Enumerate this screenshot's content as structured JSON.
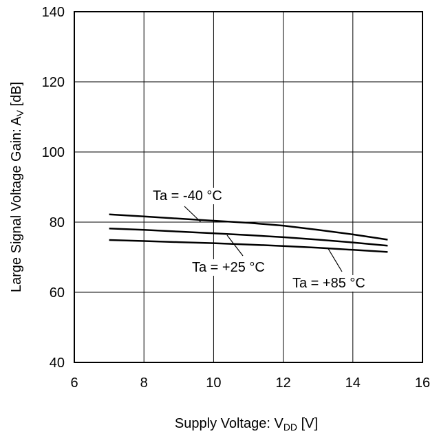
{
  "chart_data": {
    "type": "line",
    "title": "",
    "xlabel": {
      "prefix": "Supply Voltage: V",
      "sub": "DD",
      "suffix": " [V]"
    },
    "ylabel": {
      "prefix": "Large Signal Voltage Gain: A",
      "sub": "V",
      "suffix": " [dB]"
    },
    "xlim": [
      6,
      16
    ],
    "ylim": [
      40,
      140
    ],
    "xticks": [
      6,
      8,
      10,
      12,
      14,
      16
    ],
    "yticks": [
      40,
      60,
      80,
      100,
      120,
      140
    ],
    "grid": true,
    "legend": "none",
    "series": [
      {
        "name": "Ta = -40 °C",
        "x": [
          7,
          8,
          9,
          10,
          11,
          12,
          13,
          14,
          15
        ],
        "y": [
          82.2,
          81.6,
          81.0,
          80.4,
          79.8,
          79.0,
          77.8,
          76.5,
          75.0
        ]
      },
      {
        "name": "Ta = +25 °C",
        "x": [
          7,
          8,
          9,
          10,
          11,
          12,
          13,
          14,
          15
        ],
        "y": [
          78.2,
          77.8,
          77.3,
          76.8,
          76.3,
          75.7,
          75.0,
          74.2,
          73.3
        ]
      },
      {
        "name": "Ta = +85 °C",
        "x": [
          7,
          8,
          9,
          10,
          11,
          12,
          13,
          14,
          15
        ],
        "y": [
          74.9,
          74.6,
          74.3,
          74.0,
          73.6,
          73.2,
          72.7,
          72.1,
          71.5
        ]
      }
    ],
    "annotations": [
      {
        "text": "Ta = -40 °C",
        "series": 0
      },
      {
        "text": "Ta = +25 °C",
        "series": 1
      },
      {
        "text": "Ta = +85 °C",
        "series": 2
      }
    ]
  }
}
